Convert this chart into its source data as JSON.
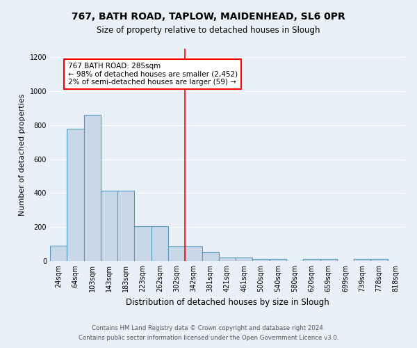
{
  "title": "767, BATH ROAD, TAPLOW, MAIDENHEAD, SL6 0PR",
  "subtitle": "Size of property relative to detached houses in Slough",
  "xlabel": "Distribution of detached houses by size in Slough",
  "ylabel": "Number of detached properties",
  "footer1": "Contains HM Land Registry data © Crown copyright and database right 2024.",
  "footer2": "Contains public sector information licensed under the Open Government Licence v3.0.",
  "bar_labels": [
    "24sqm",
    "64sqm",
    "103sqm",
    "143sqm",
    "183sqm",
    "223sqm",
    "262sqm",
    "302sqm",
    "342sqm",
    "381sqm",
    "421sqm",
    "461sqm",
    "500sqm",
    "540sqm",
    "580sqm",
    "620sqm",
    "659sqm",
    "699sqm",
    "739sqm",
    "778sqm",
    "818sqm"
  ],
  "bar_values": [
    90,
    780,
    860,
    415,
    415,
    205,
    205,
    85,
    85,
    55,
    20,
    20,
    12,
    12,
    0,
    12,
    12,
    0,
    12,
    12,
    0
  ],
  "bar_color": "#c8d8e8",
  "bar_edgecolor": "#5599bb",
  "bg_color": "#eaf0f8",
  "vline_x": 7.5,
  "vline_color": "red",
  "annotation_text": "767 BATH ROAD: 285sqm\n← 98% of detached houses are smaller (2,452)\n2% of semi-detached houses are larger (59) →",
  "annotation_box_color": "white",
  "annotation_box_edgecolor": "red",
  "ylim": [
    0,
    1250
  ],
  "yticks": [
    0,
    200,
    400,
    600,
    800,
    1000,
    1200
  ],
  "title_fontsize": 10,
  "subtitle_fontsize": 8.5
}
